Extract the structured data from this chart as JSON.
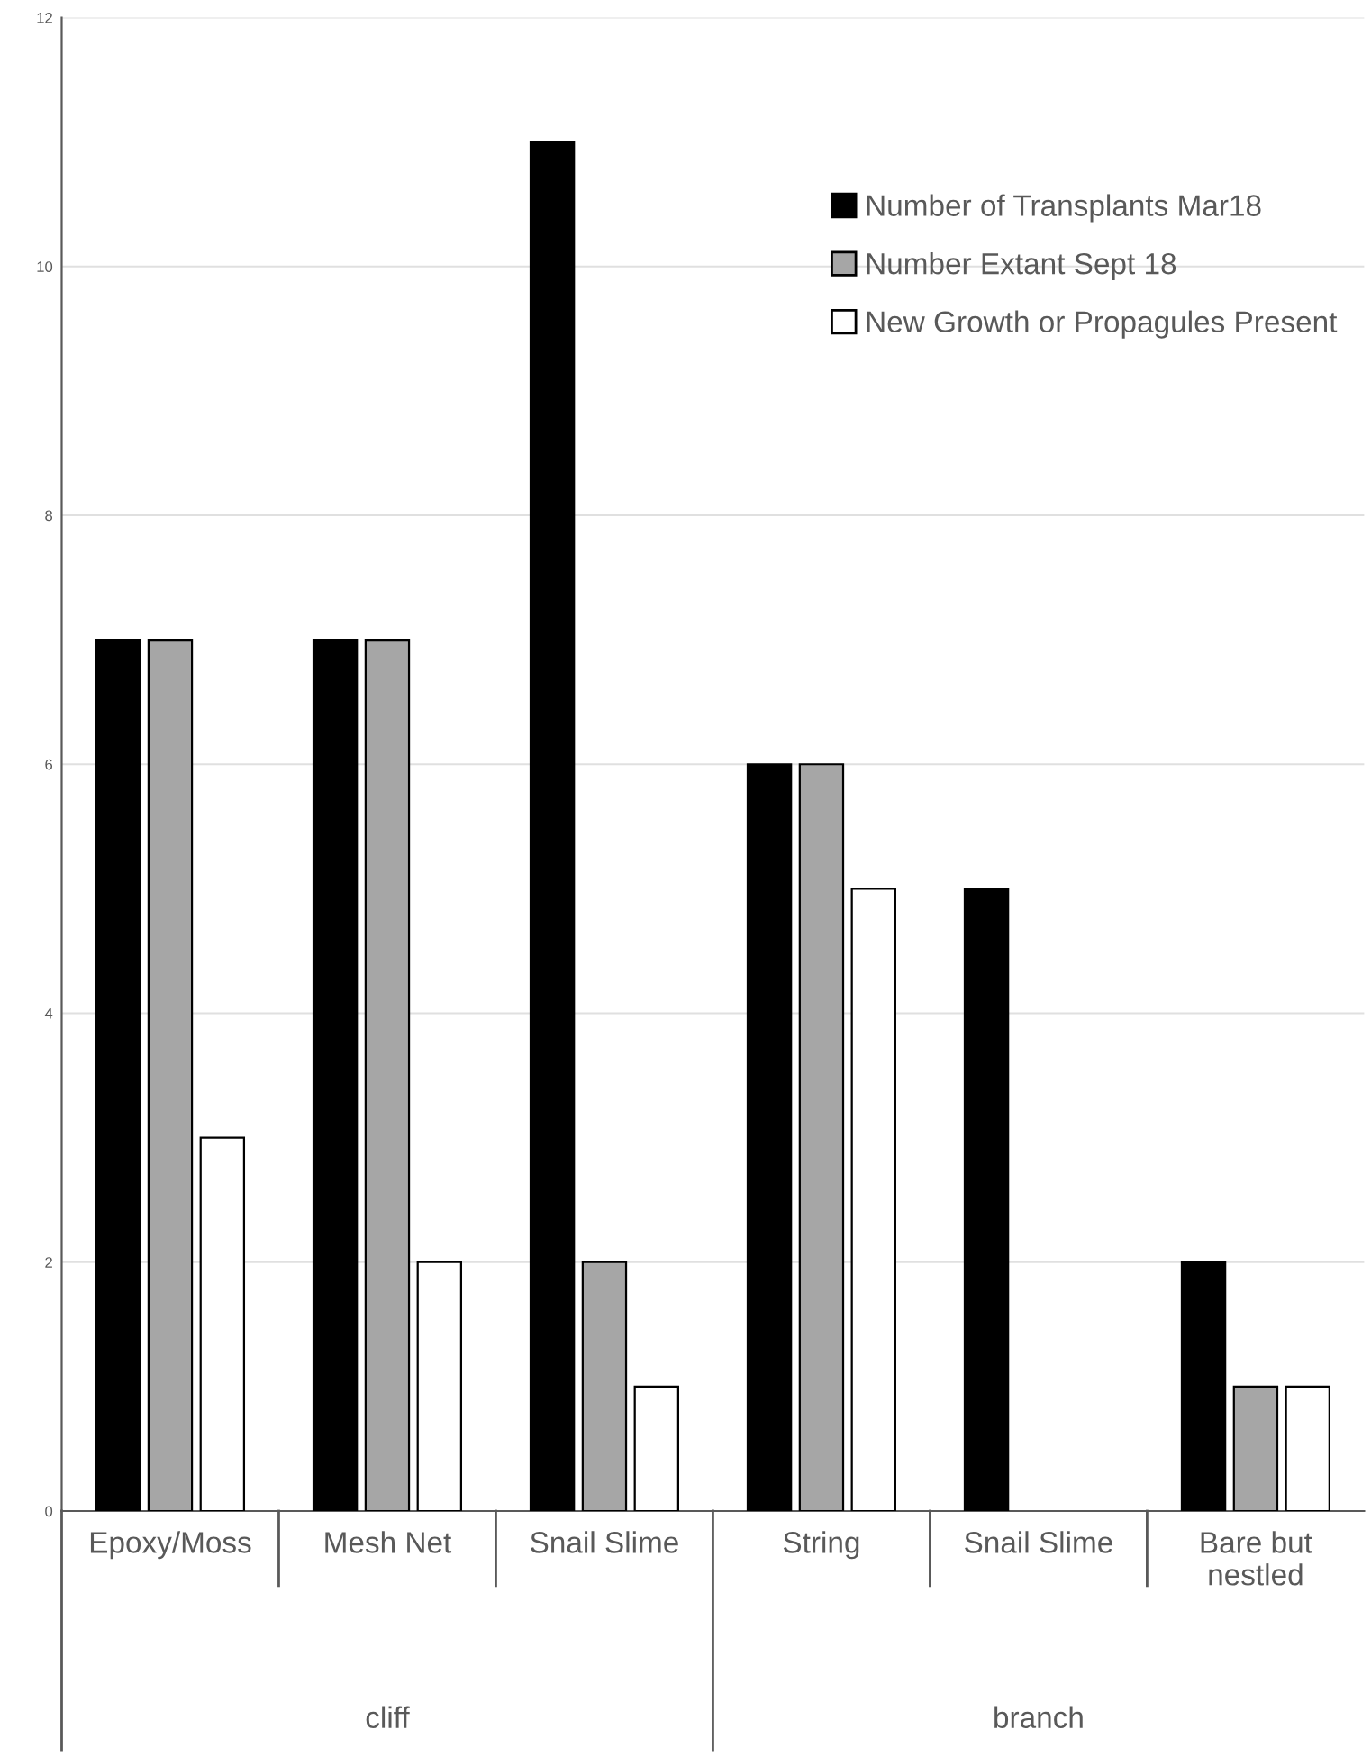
{
  "chart_data": {
    "type": "bar",
    "categories": [
      "Epoxy/Moss",
      "Mesh Net",
      "Snail Slime",
      "String",
      "Snail Slime",
      "Bare but\nnestled"
    ],
    "series": [
      {
        "name": "Number of Transplants Mar18",
        "color": "#000000",
        "values": [
          7,
          7,
          11,
          6,
          5,
          2
        ]
      },
      {
        "name": "Number Extant Sept 18",
        "color": "#a6a6a6",
        "values": [
          7,
          7,
          2,
          6,
          null,
          1
        ]
      },
      {
        "name": "New Growth or Propagules Present",
        "color": "#ffffff",
        "values": [
          3,
          2,
          1,
          5,
          null,
          1
        ]
      }
    ],
    "annotations": [
      "cliff",
      "branch"
    ],
    "ylim": [
      0,
      12
    ],
    "yticks": [
      0,
      2,
      4,
      6,
      8,
      10,
      12
    ],
    "grid": "y",
    "legend": "top right"
  }
}
